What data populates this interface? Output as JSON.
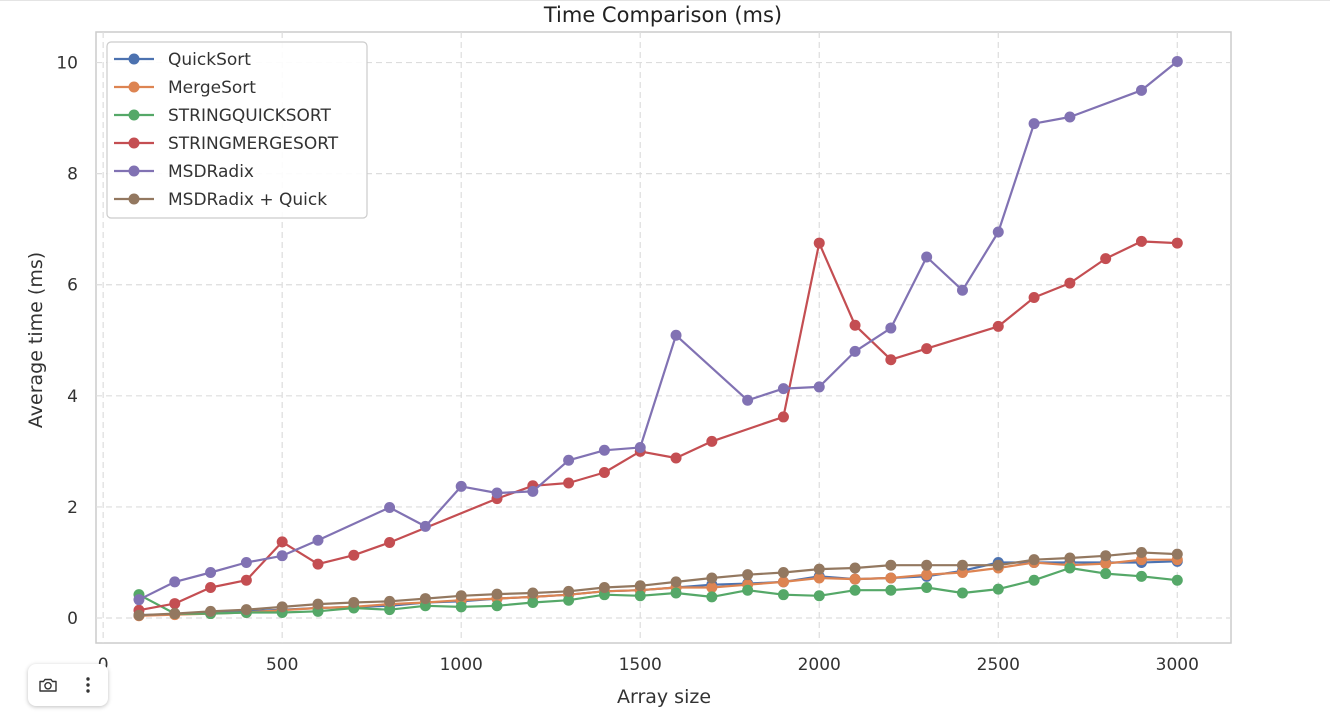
{
  "chart_data": {
    "type": "line",
    "title": "Time Comparison (ms)",
    "xlabel": "Array size",
    "ylabel": "Average time (ms)",
    "xlim": [
      -20,
      3150
    ],
    "ylim": [
      -0.45,
      10.55
    ],
    "xticks": [
      0,
      500,
      1000,
      1500,
      2000,
      2500,
      3000
    ],
    "yticks": [
      0,
      2,
      4,
      6,
      8,
      10
    ],
    "grid": true,
    "legend": "top-left",
    "series": [
      {
        "name": "QuickSort",
        "color": "#4c72b0",
        "x": [
          100,
          200,
          300,
          400,
          500,
          600,
          700,
          800,
          900,
          1000,
          1100,
          1200,
          1300,
          1400,
          1500,
          1600,
          1700,
          1800,
          1900,
          2000,
          2100,
          2200,
          2300,
          2400,
          2500,
          2600,
          2700,
          2800,
          2900,
          3000
        ],
        "y": [
          0.05,
          0.07,
          0.1,
          0.12,
          0.15,
          0.18,
          0.2,
          0.22,
          0.28,
          0.3,
          0.35,
          0.38,
          0.42,
          0.48,
          0.5,
          0.55,
          0.6,
          0.62,
          0.65,
          0.75,
          0.7,
          0.72,
          0.75,
          0.85,
          1.0,
          1.0,
          1.0,
          1.0,
          1.0,
          1.02
        ]
      },
      {
        "name": "MergeSort",
        "color": "#dd8452",
        "x": [
          100,
          200,
          300,
          400,
          500,
          600,
          700,
          800,
          900,
          1000,
          1100,
          1200,
          1300,
          1400,
          1500,
          1600,
          1700,
          1800,
          1900,
          2000,
          2100,
          2200,
          2300,
          2400,
          2500,
          2600,
          2700,
          2800,
          2900,
          3000
        ],
        "y": [
          0.04,
          0.06,
          0.08,
          0.1,
          0.14,
          0.18,
          0.2,
          0.25,
          0.28,
          0.32,
          0.35,
          0.38,
          0.42,
          0.48,
          0.5,
          0.55,
          0.55,
          0.6,
          0.65,
          0.72,
          0.7,
          0.72,
          0.78,
          0.82,
          0.9,
          1.0,
          0.95,
          0.98,
          1.05,
          1.05
        ]
      },
      {
        "name": "STRINGQUICKSORT",
        "color": "#55a868",
        "x": [
          100,
          200,
          300,
          400,
          500,
          600,
          700,
          800,
          900,
          1000,
          1100,
          1200,
          1300,
          1400,
          1500,
          1600,
          1700,
          1800,
          1900,
          2000,
          2100,
          2200,
          2300,
          2400,
          2500,
          2600,
          2700,
          2800,
          2900,
          3000
        ],
        "y": [
          0.42,
          0.08,
          0.08,
          0.1,
          0.1,
          0.12,
          0.18,
          0.15,
          0.22,
          0.2,
          0.22,
          0.28,
          0.32,
          0.42,
          0.4,
          0.45,
          0.38,
          0.5,
          0.42,
          0.4,
          0.5,
          0.5,
          0.55,
          0.45,
          0.52,
          0.68,
          0.9,
          0.8,
          0.75,
          0.68
        ]
      },
      {
        "name": "STRINGMERGESORT",
        "color": "#c44e52",
        "x": [
          100,
          200,
          300,
          400,
          500,
          600,
          700,
          800,
          1100,
          1200,
          1300,
          1400,
          1500,
          1600,
          1700,
          1900,
          2000,
          2100,
          2200,
          2300,
          2500,
          2600,
          2700,
          2800,
          2900,
          3000
        ],
        "y": [
          0.14,
          0.26,
          0.55,
          0.68,
          1.37,
          0.97,
          1.13,
          1.36,
          2.15,
          2.38,
          2.43,
          2.62,
          3.0,
          2.88,
          3.18,
          3.62,
          6.75,
          5.27,
          4.65,
          4.85,
          5.25,
          5.77,
          6.03,
          6.47,
          6.78,
          6.75
        ]
      },
      {
        "name": "MSDRadix",
        "color": "#8172b3",
        "x": [
          100,
          200,
          300,
          400,
          500,
          600,
          800,
          900,
          1000,
          1100,
          1200,
          1300,
          1400,
          1500,
          1600,
          1800,
          1900,
          2000,
          2100,
          2200,
          2300,
          2400,
          2500,
          2600,
          2700,
          2900,
          3000
        ],
        "y": [
          0.33,
          0.65,
          0.82,
          1.0,
          1.12,
          1.4,
          1.99,
          1.65,
          2.37,
          2.25,
          2.28,
          2.84,
          3.02,
          3.07,
          5.09,
          3.92,
          4.13,
          4.16,
          4.8,
          5.22,
          6.5,
          5.9,
          6.95,
          8.9,
          9.02,
          9.5,
          10.02
        ]
      },
      {
        "name": "MSDRadix + Quick",
        "color": "#937860",
        "x": [
          100,
          200,
          300,
          400,
          500,
          600,
          700,
          800,
          900,
          1000,
          1100,
          1200,
          1300,
          1400,
          1500,
          1600,
          1700,
          1800,
          1900,
          2000,
          2100,
          2200,
          2300,
          2400,
          2500,
          2600,
          2700,
          2800,
          2900,
          3000
        ],
        "y": [
          0.05,
          0.08,
          0.12,
          0.15,
          0.2,
          0.25,
          0.28,
          0.3,
          0.35,
          0.4,
          0.43,
          0.45,
          0.48,
          0.55,
          0.58,
          0.65,
          0.72,
          0.78,
          0.82,
          0.88,
          0.9,
          0.95,
          0.95,
          0.95,
          0.95,
          1.05,
          1.08,
          1.12,
          1.18,
          1.15
        ]
      }
    ]
  },
  "toolbar": {
    "screenshot_icon": "camera-icon",
    "menu_icon": "more-vertical-icon"
  }
}
